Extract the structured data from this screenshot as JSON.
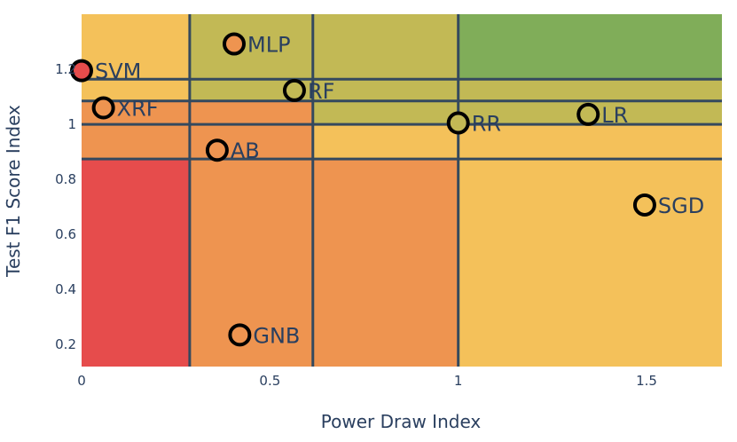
{
  "chart_data": {
    "type": "scatter",
    "xlabel": "Power Draw Index",
    "ylabel": "Test F1 Score Index",
    "xlim": [
      0,
      1.7
    ],
    "ylim": [
      0.12,
      1.4
    ],
    "x_ticks": [
      "0",
      "0.5",
      "1",
      "1.5"
    ],
    "x_tick_values": [
      0,
      0.5,
      1,
      1.5
    ],
    "y_ticks": [
      "0.2",
      "0.4",
      "0.6",
      "0.8",
      "1",
      "1.2"
    ],
    "y_tick_values": [
      0.2,
      0.4,
      0.6,
      0.8,
      1.0,
      1.2
    ],
    "vertical_lines": [
      0.287,
      0.614,
      1.0
    ],
    "horizontal_lines": [
      0.874,
      1.0,
      1.085,
      1.164
    ],
    "regions": [
      {
        "x": [
          0,
          0.287
        ],
        "y": [
          0.12,
          0.874
        ],
        "color": "#e64c4c"
      },
      {
        "x": [
          0.287,
          1.0
        ],
        "y": [
          0.12,
          0.874
        ],
        "color": "#ee9450"
      },
      {
        "x": [
          1.0,
          1.7
        ],
        "y": [
          0.12,
          0.874
        ],
        "color": "#f4c15a"
      },
      {
        "x": [
          0,
          0.614
        ],
        "y": [
          0.874,
          1.085
        ],
        "color": "#ee9450"
      },
      {
        "x": [
          0.614,
          1.0
        ],
        "y": [
          0.874,
          1.0
        ],
        "color": "#f4c15a"
      },
      {
        "x": [
          1.0,
          1.7
        ],
        "y": [
          0.874,
          1.0
        ],
        "color": "#f4c15a"
      },
      {
        "x": [
          0.614,
          1.7
        ],
        "y": [
          1.0,
          1.085
        ],
        "color": "#c2b955"
      },
      {
        "x": [
          0,
          0.287
        ],
        "y": [
          1.085,
          1.4
        ],
        "color": "#f4c15a"
      },
      {
        "x": [
          0.287,
          1.7
        ],
        "y": [
          1.085,
          1.164
        ],
        "color": "#c2b955"
      },
      {
        "x": [
          0.287,
          1.0
        ],
        "y": [
          1.164,
          1.4
        ],
        "color": "#c2b955"
      },
      {
        "x": [
          1.0,
          1.7
        ],
        "y": [
          1.164,
          1.4
        ],
        "color": "#80ad59"
      }
    ],
    "points": [
      {
        "label": "SVM",
        "x": 0.0,
        "y": 1.195,
        "color": "#e64c4c"
      },
      {
        "label": "MLP",
        "x": 0.405,
        "y": 1.292,
        "color": "#ee9450"
      },
      {
        "label": "RF",
        "x": 0.565,
        "y": 1.123,
        "color": "#c2b955"
      },
      {
        "label": "XRF",
        "x": 0.058,
        "y": 1.06,
        "color": "#ee9450"
      },
      {
        "label": "AB",
        "x": 0.36,
        "y": 0.906,
        "color": "#ee9450"
      },
      {
        "label": "RR",
        "x": 1.0,
        "y": 1.005,
        "color": "#c2b955"
      },
      {
        "label": "LR",
        "x": 1.345,
        "y": 1.036,
        "color": "#c2b955"
      },
      {
        "label": "SGD",
        "x": 1.495,
        "y": 0.707,
        "color": "#f4c15a"
      },
      {
        "label": "GNB",
        "x": 0.42,
        "y": 0.235,
        "color": "#ee9450"
      }
    ]
  }
}
